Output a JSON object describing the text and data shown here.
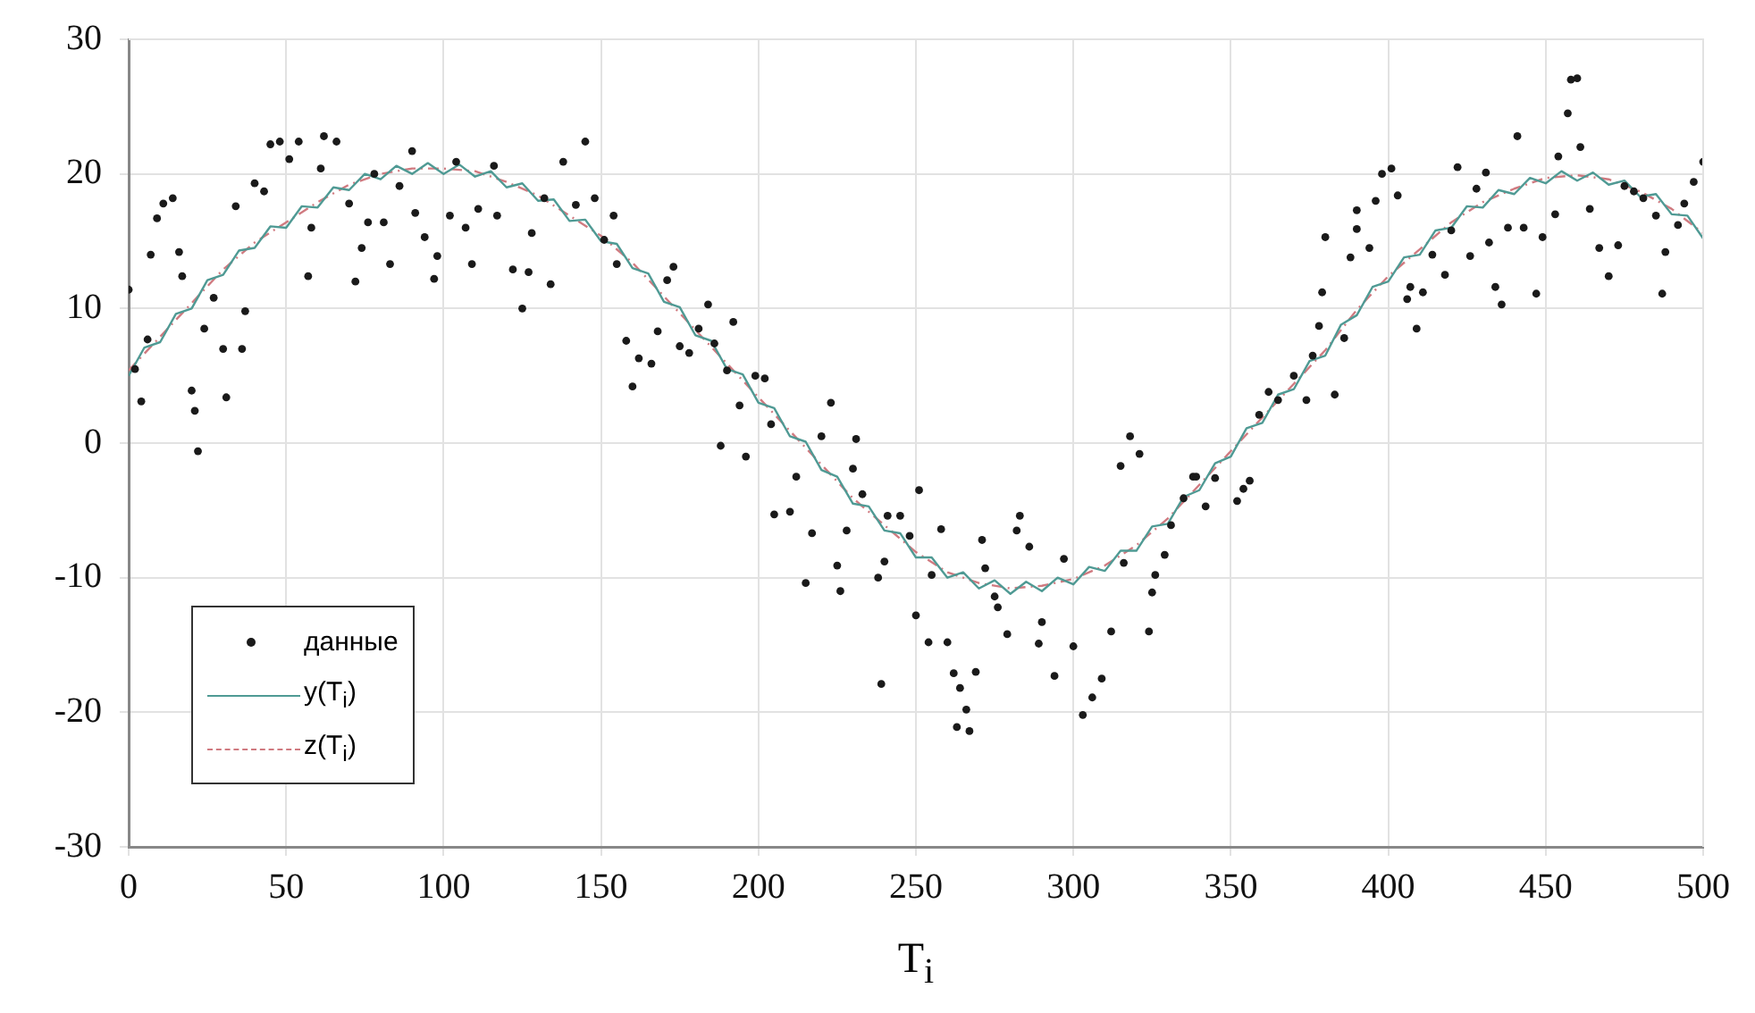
{
  "chart_data": {
    "type": "scatter",
    "xlabel": "T$_{i}$",
    "xlim": [
      0,
      500
    ],
    "xticks": [
      0,
      50,
      100,
      150,
      200,
      250,
      300,
      350,
      400,
      450,
      500
    ],
    "ylim": [
      -30,
      30
    ],
    "yticks": [
      -30,
      -20,
      -10,
      0,
      10,
      20,
      30
    ],
    "grid": true,
    "legend": "bottom left",
    "series": [
      {
        "name": "данные",
        "marker": "circle",
        "color": "#1a1a1a",
        "x": [
          0,
          2,
          4,
          6,
          7,
          9,
          11,
          14,
          16,
          17,
          20,
          21,
          22,
          24,
          27,
          30,
          31,
          36,
          34,
          37,
          40,
          43,
          45,
          48,
          51,
          54,
          57,
          58,
          61,
          62,
          66,
          70,
          72,
          74,
          76,
          78,
          81,
          83,
          86,
          90,
          91,
          94,
          97,
          98,
          102,
          104,
          107,
          109,
          111,
          116,
          117,
          122,
          125,
          127,
          128,
          132,
          134,
          138,
          142,
          145,
          148,
          151,
          154,
          155,
          158,
          160,
          162,
          166,
          168,
          171,
          173,
          175,
          178,
          181,
          184,
          186,
          188,
          190,
          192,
          194,
          196,
          199,
          202,
          204,
          205,
          210,
          212,
          215,
          217,
          220,
          223,
          225,
          226,
          228,
          230,
          231,
          233,
          238,
          239,
          240,
          241,
          245,
          248,
          250,
          251,
          254,
          255,
          258,
          260,
          262,
          263,
          264,
          266,
          267,
          269,
          271,
          272,
          275,
          276,
          279,
          282,
          283,
          286,
          289,
          290,
          294,
          297,
          300,
          303,
          306,
          309,
          312,
          315,
          316,
          318,
          321,
          324,
          325,
          326,
          329,
          331,
          335,
          338,
          339,
          342,
          345,
          352,
          354,
          356,
          359,
          362,
          365,
          370,
          374,
          376,
          378,
          379,
          380,
          383,
          386,
          388,
          390,
          390,
          394,
          396,
          398,
          401,
          403,
          406,
          407,
          409,
          411,
          414,
          418,
          420,
          422,
          426,
          428,
          431,
          432,
          434,
          436,
          438,
          441,
          443,
          447,
          449,
          453,
          454,
          457,
          458,
          460,
          461,
          464,
          467,
          470,
          473,
          475,
          478,
          481,
          485,
          487,
          488,
          492,
          494,
          497,
          500
        ],
        "values": [
          11.4,
          5.5,
          3.1,
          7.7,
          14,
          16.7,
          17.8,
          18.2,
          14.2,
          12.4,
          3.9,
          2.4,
          -0.6,
          8.5,
          10.8,
          7,
          3.4,
          7,
          17.6,
          9.8,
          19.3,
          18.7,
          22.2,
          22.4,
          21.1,
          22.4,
          12.4,
          16,
          20.4,
          22.8,
          22.4,
          17.8,
          12,
          14.5,
          16.4,
          20,
          16.4,
          13.3,
          19.1,
          21.7,
          17.1,
          15.3,
          12.2,
          13.9,
          16.9,
          20.9,
          16,
          13.3,
          17.4,
          20.6,
          16.9,
          12.9,
          10,
          12.7,
          15.6,
          18.2,
          11.8,
          20.9,
          17.7,
          22.4,
          18.2,
          15.1,
          16.9,
          13.3,
          7.6,
          4.2,
          6.3,
          5.9,
          8.3,
          12.1,
          13.1,
          7.2,
          6.7,
          8.5,
          10.3,
          7.4,
          -0.2,
          5.4,
          9,
          2.8,
          -1,
          5,
          4.8,
          1.4,
          -5.3,
          -5.1,
          -2.5,
          -10.4,
          -6.7,
          0.5,
          3,
          -9.1,
          -11,
          -6.5,
          -1.9,
          0.3,
          -3.8,
          -10,
          -17.9,
          -8.8,
          -5.4,
          -5.4,
          -6.9,
          -12.8,
          -3.5,
          -14.8,
          -9.8,
          -6.4,
          -14.8,
          -17.1,
          -21.1,
          -18.2,
          -19.8,
          -21.4,
          -17,
          -7.2,
          -9.3,
          -11.4,
          -12.2,
          -14.2,
          -6.5,
          -5.4,
          -7.7,
          -14.9,
          -13.3,
          -17.3,
          -8.6,
          -15.1,
          -20.2,
          -18.9,
          -17.5,
          -14,
          -1.7,
          -8.9,
          0.5,
          -0.8,
          -14,
          -11.1,
          -9.8,
          -8.3,
          -6.1,
          -4.1,
          -2.5,
          -2.5,
          -4.7,
          -2.6,
          -4.3,
          -3.4,
          -2.8,
          2.1,
          3.8,
          3.2,
          5,
          3.2,
          6.5,
          8.7,
          11.2,
          15.3,
          3.6,
          7.8,
          13.8,
          17.3,
          15.9,
          14.5,
          18,
          20,
          20.4,
          18.4,
          10.7,
          11.6,
          8.5,
          11.2,
          14,
          12.5,
          15.8,
          20.5,
          13.9,
          18.9,
          20.1,
          14.9,
          11.6,
          10.3,
          16,
          22.8,
          16,
          11.1,
          15.3,
          17,
          21.3,
          24.5,
          27,
          27.1,
          22,
          17.4,
          14.5,
          12.4,
          14.7,
          19.1,
          18.7,
          18.2,
          16.9,
          11.1,
          14.2,
          16.2,
          17.8,
          19.4,
          20.9
        ]
      },
      {
        "name": "y(T$_{i}$)",
        "type": "line",
        "marker": "none",
        "line_style": "solid",
        "color": "#4f9a94",
        "x": [
          0,
          5,
          10,
          15,
          20,
          25,
          30,
          35,
          40,
          45,
          50,
          55,
          60,
          65,
          70,
          75,
          80,
          85,
          90,
          95,
          100,
          105,
          110,
          115,
          120,
          125,
          130,
          135,
          140,
          145,
          150,
          155,
          160,
          165,
          170,
          175,
          180,
          185,
          190,
          195,
          200,
          205,
          210,
          215,
          220,
          225,
          230,
          235,
          240,
          245,
          250,
          255,
          260,
          265,
          270,
          275,
          280,
          285,
          290,
          295,
          300,
          305,
          310,
          315,
          320,
          325,
          330,
          335,
          340,
          345,
          350,
          355,
          360,
          365,
          370,
          375,
          380,
          385,
          390,
          395,
          400,
          405,
          410,
          415,
          420,
          425,
          430,
          435,
          440,
          445,
          450,
          455,
          460,
          465,
          470,
          475,
          480,
          485,
          490,
          495,
          500
        ],
        "values": [
          5,
          7.1,
          7.5,
          9.6,
          10,
          12.1,
          12.5,
          14.3,
          14.5,
          16.1,
          16,
          17.6,
          17.5,
          19,
          18.8,
          20,
          19.6,
          20.6,
          20,
          20.8,
          20,
          20.7,
          19.8,
          20.2,
          19,
          19.3,
          18,
          18.1,
          16.5,
          16.6,
          15,
          14.8,
          13,
          12.6,
          10.5,
          10.1,
          8,
          7.6,
          5.5,
          5.1,
          3,
          2.6,
          0.5,
          0.1,
          -2,
          -2.5,
          -4.5,
          -4.7,
          -6.5,
          -6.7,
          -8.5,
          -8.5,
          -10,
          -9.6,
          -10.8,
          -10.2,
          -11.2,
          -10.3,
          -11,
          -10,
          -10.5,
          -9.2,
          -9.5,
          -8,
          -8,
          -6.2,
          -6,
          -4,
          -3.5,
          -1.5,
          -1,
          1.1,
          1.5,
          3.6,
          4,
          6.1,
          6.5,
          8.8,
          9.5,
          11.6,
          12,
          13.8,
          14,
          15.8,
          16,
          17.6,
          17.5,
          18.8,
          18.5,
          19.7,
          19.3,
          20.2,
          19.5,
          20.1,
          19.2,
          19.5,
          18.3,
          18.5,
          17,
          16.9,
          15.2
        ]
      },
      {
        "name": "z(T$_{i}$)",
        "type": "line",
        "marker": "none",
        "line_style": "dashed",
        "color": "#d07a80",
        "x": [
          0,
          10,
          20,
          30,
          40,
          50,
          60,
          70,
          80,
          90,
          100,
          110,
          120,
          130,
          140,
          150,
          160,
          170,
          180,
          190,
          200,
          210,
          220,
          230,
          240,
          250,
          260,
          270,
          280,
          290,
          300,
          310,
          320,
          330,
          340,
          350,
          360,
          370,
          380,
          390,
          400,
          410,
          420,
          430,
          440,
          450,
          460,
          470,
          480,
          490,
          500
        ],
        "values": [
          5.4,
          7.9,
          10.4,
          12.9,
          14.9,
          16.4,
          17.9,
          19.2,
          20,
          20.4,
          20.4,
          20.2,
          19.4,
          18.4,
          16.9,
          15.4,
          13.4,
          10.9,
          8.4,
          5.9,
          3.4,
          0.9,
          -1.6,
          -4.1,
          -6.1,
          -8.1,
          -9.6,
          -10.4,
          -10.8,
          -10.6,
          -10.1,
          -9.1,
          -7.6,
          -5.6,
          -3.1,
          -0.6,
          1.9,
          4.4,
          6.9,
          9.9,
          12.4,
          14.4,
          16.4,
          17.9,
          18.9,
          19.7,
          19.9,
          19.6,
          18.7,
          17.4,
          15.6
        ]
      }
    ]
  }
}
